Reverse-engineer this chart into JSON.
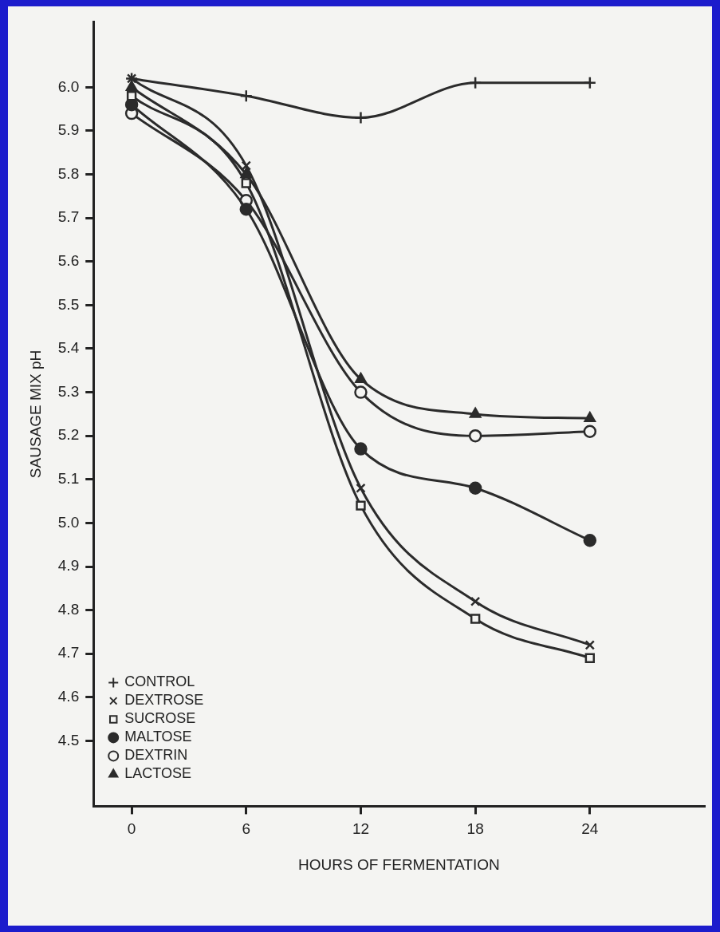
{
  "chart_data": {
    "type": "line",
    "xlabel": "HOURS OF FERMENTATION",
    "ylabel": "SAUSAGE MIX pH",
    "x": [
      0,
      6,
      12,
      18,
      24
    ],
    "xlim": [
      -2,
      30
    ],
    "xticks": [
      0,
      6,
      12,
      18,
      24
    ],
    "ylim": [
      4.35,
      6.15
    ],
    "yticks": [
      4.5,
      4.6,
      4.7,
      4.8,
      4.9,
      {
        "value": 5,
        "label": "5.0"
      },
      5.1,
      5.2,
      5.3,
      5.4,
      5.5,
      5.6,
      5.7,
      5.8,
      5.9,
      {
        "value": 6,
        "label": "6.0"
      }
    ],
    "grid": false,
    "legend": "bottom left",
    "line_style": "solid",
    "series": [
      {
        "name": "CONTROL",
        "color": "#2b2b2b",
        "marker": "cross",
        "values": [
          6.02,
          5.98,
          5.93,
          6.01,
          6.01
        ]
      },
      {
        "name": "DEXTROSE",
        "color": "#2b2b2b",
        "marker": "x",
        "values": [
          6.02,
          5.82,
          5.08,
          4.82,
          4.72
        ]
      },
      {
        "name": "SUCROSE",
        "color": "#2b2b2b",
        "marker": "square-open",
        "values": [
          5.98,
          5.78,
          5.04,
          4.78,
          4.69
        ]
      },
      {
        "name": "MALTOSE",
        "color": "#2b2b2b",
        "marker": "circle",
        "values": [
          5.96,
          5.72,
          5.17,
          5.08,
          4.96
        ]
      },
      {
        "name": "DEXTRIN",
        "color": "#2b2b2b",
        "marker": "circle-open",
        "values": [
          5.94,
          5.74,
          5.3,
          5.2,
          5.21
        ]
      },
      {
        "name": "LACTOSE",
        "color": "#2b2b2b",
        "marker": "triangle",
        "values": [
          6.0,
          5.8,
          5.33,
          5.25,
          5.24
        ]
      }
    ]
  }
}
